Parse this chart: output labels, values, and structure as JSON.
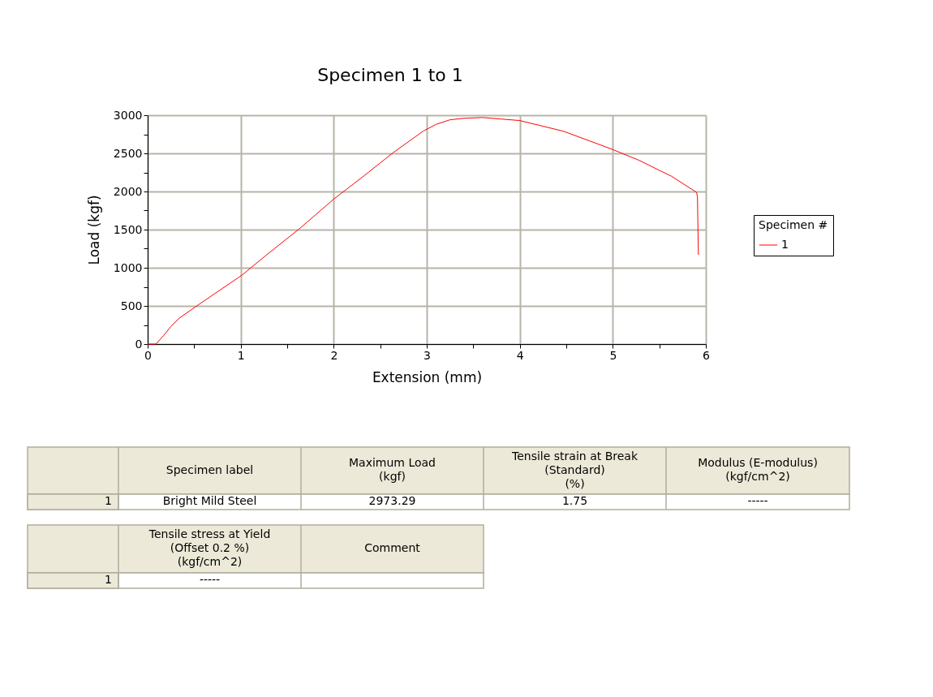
{
  "chart_data": {
    "type": "line",
    "title": "Specimen 1 to 1",
    "xlabel": "Extension (mm)",
    "ylabel": "Load (kgf)",
    "legend_title": "Specimen #",
    "series": [
      {
        "name": "1",
        "color": "#ff0000",
        "x": [
          0,
          0.09,
          0.17,
          0.25,
          0.34,
          0.54,
          0.72,
          1.01,
          1.3,
          1.63,
          2.0,
          2.32,
          2.64,
          2.96,
          3.1,
          3.25,
          3.4,
          3.6,
          3.8,
          4.0,
          4.47,
          5.0,
          5.28,
          5.63,
          5.9,
          5.91,
          5.92
        ],
        "values": [
          0,
          0,
          110,
          230,
          340,
          510,
          660,
          900,
          1190,
          1510,
          1900,
          2200,
          2510,
          2790,
          2880,
          2940,
          2960,
          2970,
          2950,
          2930,
          2790,
          2550,
          2410,
          2200,
          1990,
          1930,
          1170
        ]
      }
    ],
    "xlim": [
      0,
      6
    ],
    "ylim": [
      0,
      3000
    ],
    "xticks": [
      0,
      {
        "value": 0.5,
        "label": null
      },
      1,
      {
        "value": 1.5,
        "label": null
      },
      2,
      {
        "value": 2.5,
        "label": null
      },
      3,
      {
        "value": 3.5,
        "label": null
      },
      4,
      {
        "value": 4.5,
        "label": null
      },
      5,
      {
        "value": 5.5,
        "label": null
      },
      6
    ],
    "yticks": [
      0,
      {
        "value": 250,
        "label": null
      },
      500,
      {
        "value": 750,
        "label": null
      },
      1000,
      {
        "value": 1250,
        "label": null
      },
      1500,
      {
        "value": 1750,
        "label": null
      },
      2000,
      {
        "value": 2250,
        "label": null
      },
      2500,
      {
        "value": 2750,
        "label": null
      },
      3000
    ],
    "grid": true,
    "legend": "right",
    "annotations": [
      "Specimen label",
      "Maximum Load\n(kgf)",
      "Tensile strain at Break\n(Standard)\n(%)",
      "Modulus (E-modulus)\n(kgf/cm^2)",
      "1",
      "Bright Mild Steel",
      "2973.29",
      "1.75",
      "-----",
      "Tensile stress at Yield\n(Offset       0.2 %)\n(kgf/cm^2)",
      "Comment",
      "1",
      "-----"
    ]
  }
}
